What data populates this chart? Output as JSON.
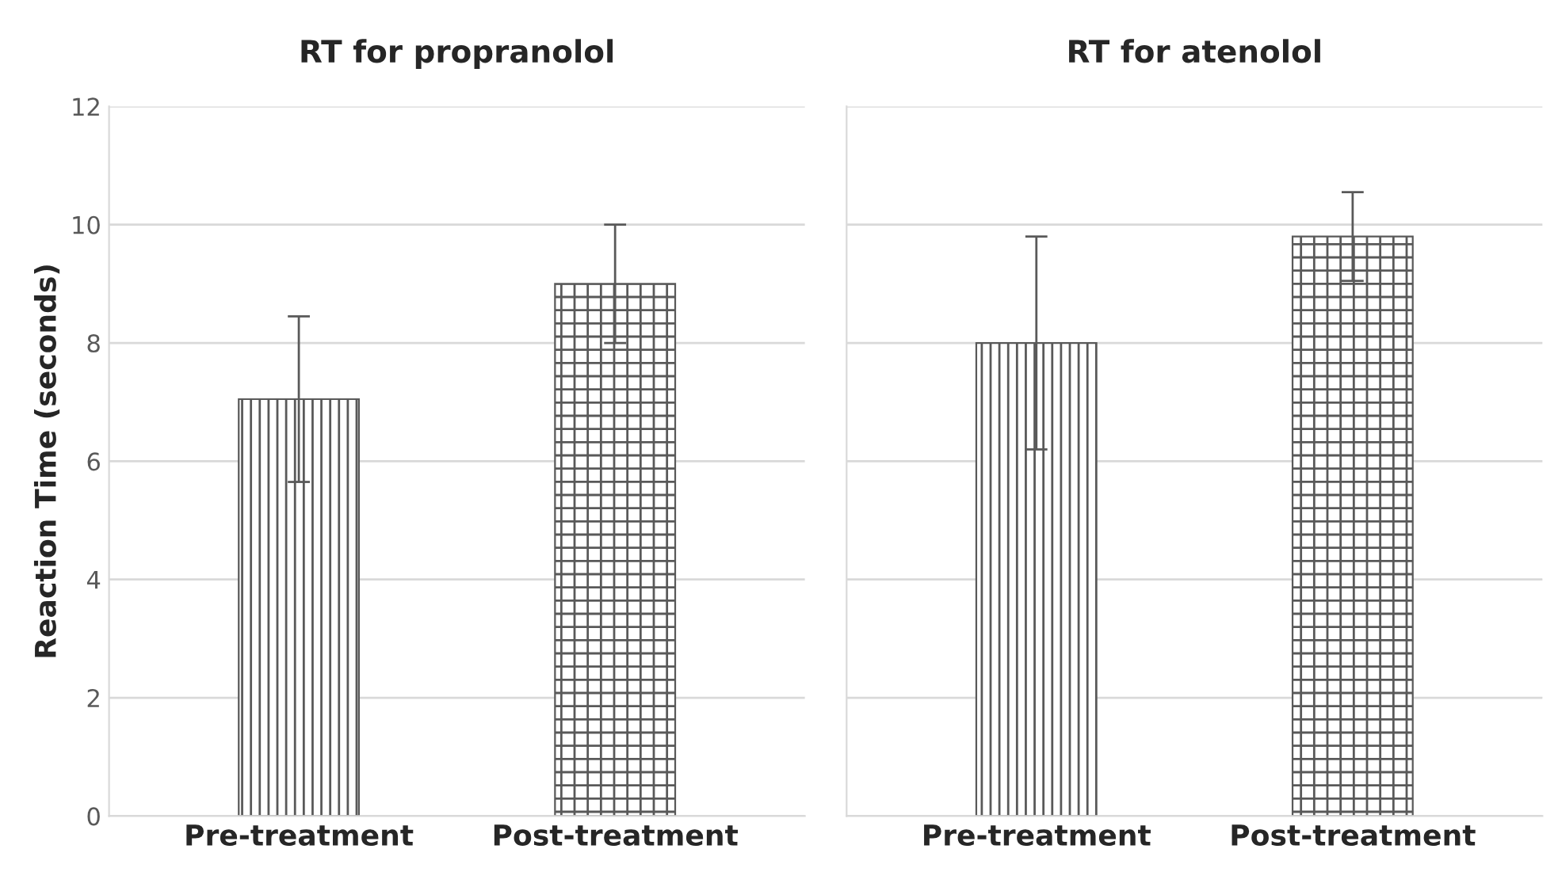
{
  "chart_data": [
    {
      "type": "bar",
      "title": "RT for propranolol",
      "ylabel": "Reaction Time (seconds)",
      "categories": [
        "Pre-treatment",
        "Post-treatment"
      ],
      "values": [
        7.05,
        9.0
      ],
      "errors": [
        1.4,
        1.0
      ],
      "colors": [
        "#595959",
        "#595959"
      ],
      "ylim": [
        0,
        12
      ],
      "yticks": [
        0,
        2,
        4,
        6,
        8,
        10,
        12
      ],
      "grid": "y"
    },
    {
      "type": "bar",
      "title": "RT for atenolol",
      "categories": [
        "Pre-treatment",
        "Post-treatment"
      ],
      "values": [
        8.0,
        9.8
      ],
      "errors": [
        1.8,
        0.75
      ],
      "colors": [
        "#595959",
        "#595959"
      ],
      "ylim": [
        0,
        12
      ],
      "yticks": [
        0,
        2,
        4,
        6,
        8,
        10,
        12
      ],
      "grid": "y",
      "tick_labels": "x"
    }
  ]
}
